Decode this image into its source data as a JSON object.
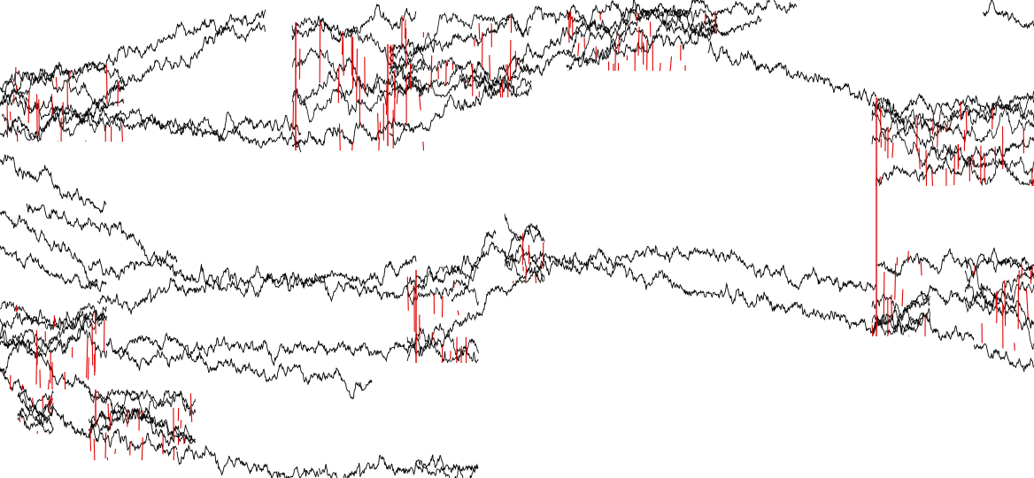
{
  "image": {
    "background_color": "#ffffff",
    "path_color": "#000000",
    "jump_color": "#e00000"
  }
}
